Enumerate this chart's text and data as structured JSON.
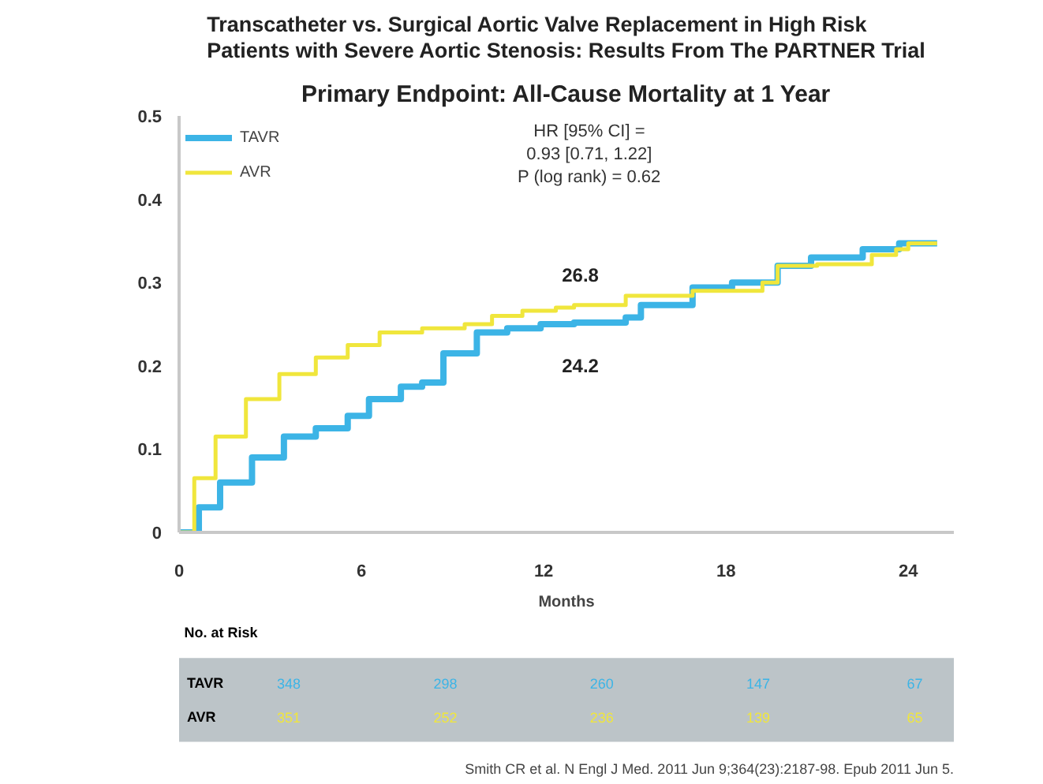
{
  "chart_data": {
    "type": "step",
    "title": "Transcatheter vs. Surgical Aortic Valve Replacement in High Risk Patients with Severe Aortic Stenosis: Results From The PARTNER Trial",
    "subtitle": "Primary Endpoint: All-Cause Mortality at 1 Year",
    "xlabel": "Months",
    "series": [
      {
        "name": "TAVR",
        "color": "#3cb4e6",
        "x": [
          0,
          0.65,
          1.35,
          2.4,
          3.45,
          4.5,
          5.55,
          6.25,
          7.3,
          8,
          8.7,
          9.8,
          10.8,
          11.9,
          13,
          14.7,
          15.2,
          16.4,
          16.9,
          18.2,
          19.2,
          19.7,
          20.8,
          22.2,
          22.5,
          23.4,
          23.7,
          24.95
        ],
        "values": [
          0,
          0.03,
          0.06,
          0.09,
          0.115,
          0.125,
          0.14,
          0.16,
          0.175,
          0.18,
          0.215,
          0.24,
          0.245,
          0.25,
          0.252,
          0.258,
          0.273,
          0.273,
          0.294,
          0.3,
          0.3,
          0.32,
          0.33,
          0.33,
          0.34,
          0.34,
          0.347,
          0.347
        ]
      },
      {
        "name": "AVR",
        "color": "#f0e63c",
        "x": [
          0,
          0.5,
          1.2,
          2.2,
          3.3,
          4.5,
          5.55,
          6.6,
          8,
          9.4,
          10.3,
          11.3,
          12.4,
          13,
          14.7,
          16.4,
          16.9,
          18.2,
          19.2,
          19.7,
          21,
          22.4,
          22.8,
          23.6,
          24,
          24.95
        ],
        "values": [
          0,
          0.065,
          0.115,
          0.16,
          0.19,
          0.21,
          0.225,
          0.24,
          0.245,
          0.25,
          0.26,
          0.266,
          0.27,
          0.273,
          0.284,
          0.284,
          0.29,
          0.29,
          0.3,
          0.32,
          0.322,
          0.322,
          0.333,
          0.34,
          0.347,
          0.347
        ]
      }
    ],
    "xlim": [
      0,
      25.5
    ],
    "xticks": [
      0,
      6,
      12,
      18,
      24
    ],
    "ylim": [
      0,
      0.5
    ],
    "yticks": [
      0,
      0.1,
      0.2,
      0.3,
      0.4,
      0.5
    ],
    "grid": false,
    "legend": "top left",
    "marker": "none",
    "line_style": "solid",
    "annotations": [
      "HR [95% CI] =\n0.93 [0.71, 1.22]\nP (log rank) = 0.62",
      "No. at Risk",
      "Smith CR et al. N Engl J Med. 2011 Jun 9;364(23):2187-98. Epub 2011 Jun 5.",
      {
        "text": "26.8",
        "x": 12,
        "y": 0.268
      },
      {
        "text": "24.2",
        "x": 12,
        "y": 0.242
      },
      "348",
      "298",
      "260",
      "147",
      "67",
      "351",
      "252",
      "236",
      "139",
      "65"
    ]
  }
}
